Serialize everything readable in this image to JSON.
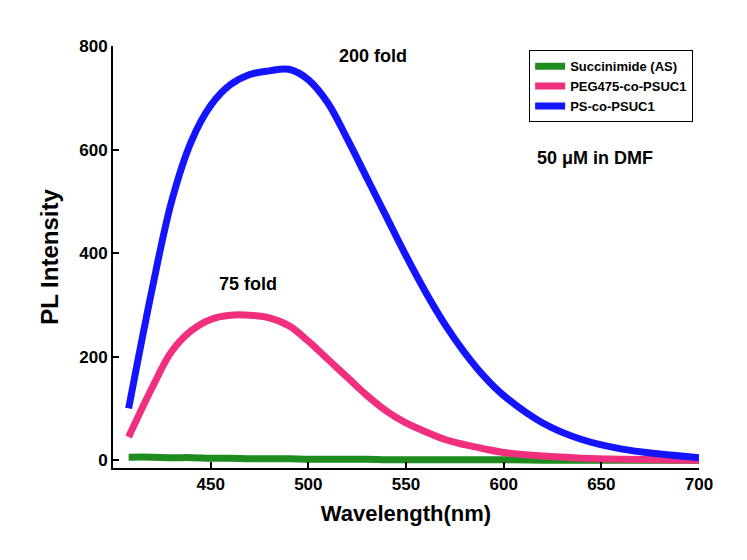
{
  "chart_data": {
    "type": "line",
    "x_label": "Wavelength(nm)",
    "y_label": "PL Intensity",
    "x": [
      408,
      420,
      430,
      440,
      450,
      460,
      470,
      480,
      490,
      500,
      510,
      520,
      530,
      540,
      550,
      560,
      570,
      580,
      590,
      600,
      620,
      640,
      660,
      680,
      700
    ],
    "series": [
      {
        "name": "Succinimide (AS)",
        "color": "#1e8c1e",
        "values": [
          6,
          6,
          5,
          5,
          4,
          4,
          3,
          3,
          3,
          2,
          2,
          2,
          2,
          1,
          1,
          1,
          1,
          1,
          1,
          1,
          0,
          0,
          0,
          0,
          0
        ]
      },
      {
        "name": "PEG475-co-PSUC1",
        "color": "#f0307f",
        "values": [
          45,
          140,
          210,
          250,
          272,
          280,
          280,
          275,
          260,
          230,
          195,
          160,
          125,
          95,
          72,
          55,
          40,
          30,
          22,
          15,
          8,
          4,
          2,
          1,
          0
        ]
      },
      {
        "name": "PS-co-PSUC1",
        "color": "#1414ff",
        "values": [
          100,
          330,
          500,
          615,
          685,
          725,
          745,
          752,
          755,
          735,
          690,
          620,
          545,
          470,
          395,
          325,
          262,
          208,
          162,
          125,
          72,
          40,
          22,
          12,
          5
        ]
      }
    ],
    "annotations": [
      {
        "text": "200 fold",
        "x": 533,
        "y": 780
      },
      {
        "text": "75 fold",
        "x": 469,
        "y": 340
      },
      {
        "text": "50 μM in DMF",
        "x": 647,
        "y": 583
      }
    ],
    "xlim": [
      400,
      700
    ],
    "xticks": [
      450,
      500,
      550,
      600,
      650,
      700
    ],
    "ylim": [
      -15,
      800
    ],
    "yticks": [
      0,
      200,
      400,
      600,
      800
    ],
    "grid": false,
    "legend": "top right"
  }
}
